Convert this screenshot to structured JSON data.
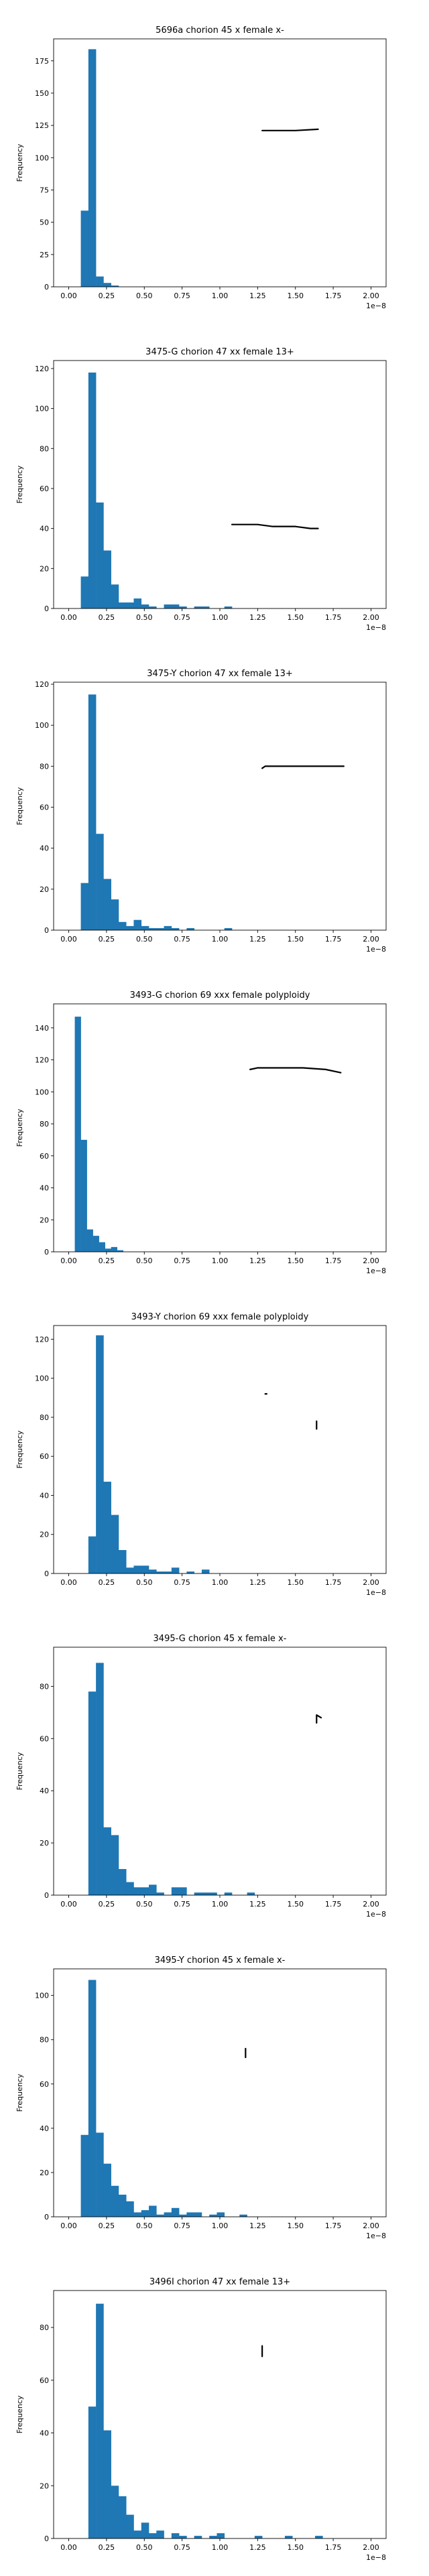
{
  "colors": {
    "bar": "#1f77b4",
    "axis": "#000000",
    "annotation": "#000000",
    "background": "#ffffff"
  },
  "chart_data": [
    {
      "type": "bar",
      "title": "5696a chorion 45 x female x-",
      "xlabel": "",
      "ylabel": "Frequency",
      "x_offset_label": "1e−8",
      "xlim": [
        -0.1,
        2.1
      ],
      "ylim": [
        0,
        192
      ],
      "xticks": [
        0.0,
        0.25,
        0.5,
        0.75,
        1.0,
        1.25,
        1.5,
        1.75,
        2.0
      ],
      "xtick_labels": [
        "0.00",
        "0.25",
        "0.50",
        "0.75",
        "1.00",
        "1.25",
        "1.50",
        "1.75",
        "2.00"
      ],
      "yticks": [
        0,
        25,
        50,
        75,
        100,
        125,
        150,
        175
      ],
      "bin_start": 0.08,
      "bin_width": 0.05,
      "values": [
        59,
        184,
        8,
        3,
        1
      ],
      "annotation_segments": [
        {
          "points": [
            [
              1.28,
              121
            ],
            [
              1.5,
              121
            ],
            [
              1.65,
              122
            ]
          ]
        }
      ],
      "grid": false,
      "legend": "none"
    },
    {
      "type": "bar",
      "title": "3475-G chorion 47 xx female 13+",
      "xlabel": "",
      "ylabel": "Frequency",
      "x_offset_label": "1e−8",
      "xlim": [
        -0.1,
        2.1
      ],
      "ylim": [
        0,
        124
      ],
      "xticks": [
        0.0,
        0.25,
        0.5,
        0.75,
        1.0,
        1.25,
        1.5,
        1.75,
        2.0
      ],
      "xtick_labels": [
        "0.00",
        "0.25",
        "0.50",
        "0.75",
        "1.00",
        "1.25",
        "1.50",
        "1.75",
        "2.00"
      ],
      "yticks": [
        0,
        20,
        40,
        60,
        80,
        100,
        120
      ],
      "bin_start": 0.08,
      "bin_width": 0.05,
      "values": [
        16,
        118,
        53,
        29,
        12,
        3,
        3,
        5,
        2,
        1,
        0,
        2,
        2,
        1,
        0,
        1,
        1,
        0,
        0,
        1
      ],
      "annotation_segments": [
        {
          "points": [
            [
              1.08,
              42
            ],
            [
              1.25,
              42
            ],
            [
              1.35,
              41
            ],
            [
              1.5,
              41
            ],
            [
              1.6,
              40
            ],
            [
              1.65,
              40
            ]
          ]
        }
      ],
      "grid": false,
      "legend": "none"
    },
    {
      "type": "bar",
      "title": "3475-Y chorion 47 xx female 13+",
      "xlabel": "",
      "ylabel": "Frequency",
      "x_offset_label": "1e−8",
      "xlim": [
        -0.1,
        2.1
      ],
      "ylim": [
        0,
        121
      ],
      "xticks": [
        0.0,
        0.25,
        0.5,
        0.75,
        1.0,
        1.25,
        1.5,
        1.75,
        2.0
      ],
      "xtick_labels": [
        "0.00",
        "0.25",
        "0.50",
        "0.75",
        "1.00",
        "1.25",
        "1.50",
        "1.75",
        "2.00"
      ],
      "yticks": [
        0,
        20,
        40,
        60,
        80,
        100,
        120
      ],
      "bin_start": 0.08,
      "bin_width": 0.05,
      "values": [
        23,
        115,
        47,
        25,
        15,
        4,
        2,
        5,
        2,
        1,
        1,
        2,
        1,
        0,
        1,
        0,
        0,
        0,
        0,
        1
      ],
      "annotation_segments": [
        {
          "points": [
            [
              1.28,
              79
            ],
            [
              1.3,
              80
            ],
            [
              1.5,
              80
            ],
            [
              1.82,
              80
            ]
          ]
        }
      ],
      "grid": false,
      "legend": "none"
    },
    {
      "type": "bar",
      "title": "3493-G chorion 69 xxx female polyploidy",
      "xlabel": "",
      "ylabel": "Frequency",
      "x_offset_label": "1e−8",
      "xlim": [
        -0.1,
        2.1
      ],
      "ylim": [
        0,
        155
      ],
      "xticks": [
        0.0,
        0.25,
        0.5,
        0.75,
        1.0,
        1.25,
        1.5,
        1.75,
        2.0
      ],
      "xtick_labels": [
        "0.00",
        "0.25",
        "0.50",
        "0.75",
        "1.00",
        "1.25",
        "1.50",
        "1.75",
        "2.00"
      ],
      "yticks": [
        0,
        20,
        40,
        60,
        80,
        100,
        120,
        140
      ],
      "bin_start": 0.04,
      "bin_width": 0.04,
      "values": [
        147,
        70,
        14,
        10,
        6,
        2,
        3,
        1
      ],
      "annotation_segments": [
        {
          "points": [
            [
              1.2,
              114
            ],
            [
              1.25,
              115
            ],
            [
              1.55,
              115
            ],
            [
              1.7,
              114
            ],
            [
              1.8,
              112
            ]
          ]
        }
      ],
      "grid": false,
      "legend": "none"
    },
    {
      "type": "bar",
      "title": "3493-Y chorion 69 xxx female polyploidy",
      "xlabel": "",
      "ylabel": "Frequency",
      "x_offset_label": "1e−8",
      "xlim": [
        -0.1,
        2.1
      ],
      "ylim": [
        0,
        127
      ],
      "xticks": [
        0.0,
        0.25,
        0.5,
        0.75,
        1.0,
        1.25,
        1.5,
        1.75,
        2.0
      ],
      "xtick_labels": [
        "0.00",
        "0.25",
        "0.50",
        "0.75",
        "1.00",
        "1.25",
        "1.50",
        "1.75",
        "2.00"
      ],
      "yticks": [
        0,
        20,
        40,
        60,
        80,
        100,
        120
      ],
      "bin_start": 0.13,
      "bin_width": 0.05,
      "values": [
        19,
        122,
        47,
        30,
        12,
        3,
        4,
        4,
        2,
        1,
        1,
        3,
        0,
        1,
        0,
        2
      ],
      "annotation_segments": [
        {
          "points": [
            [
              1.64,
              74
            ],
            [
              1.64,
              78
            ]
          ]
        },
        {
          "points": [
            [
              1.3,
              92
            ],
            [
              1.31,
              92
            ]
          ]
        }
      ],
      "grid": false,
      "legend": "none"
    },
    {
      "type": "bar",
      "title": "3495-G chorion 45 x female x-",
      "xlabel": "",
      "ylabel": "Frequency",
      "x_offset_label": "1e−8",
      "xlim": [
        -0.1,
        2.1
      ],
      "ylim": [
        0,
        95
      ],
      "xticks": [
        0.0,
        0.25,
        0.5,
        0.75,
        1.0,
        1.25,
        1.5,
        1.75,
        2.0
      ],
      "xtick_labels": [
        "0.00",
        "0.25",
        "0.50",
        "0.75",
        "1.00",
        "1.25",
        "1.50",
        "1.75",
        "2.00"
      ],
      "yticks": [
        0,
        20,
        40,
        60,
        80
      ],
      "bin_start": 0.13,
      "bin_width": 0.05,
      "values": [
        78,
        89,
        26,
        23,
        10,
        5,
        3,
        3,
        4,
        1,
        0,
        3,
        3,
        0,
        1,
        1,
        1,
        0,
        1,
        0,
        0,
        1
      ],
      "annotation_segments": [
        {
          "points": [
            [
              1.64,
              66
            ],
            [
              1.64,
              69
            ],
            [
              1.67,
              68
            ]
          ]
        }
      ],
      "grid": false,
      "legend": "none"
    },
    {
      "type": "bar",
      "title": "3495-Y chorion 45 x female x-",
      "xlabel": "",
      "ylabel": "Frequency",
      "x_offset_label": "1e−8",
      "xlim": [
        -0.1,
        2.1
      ],
      "ylim": [
        0,
        112
      ],
      "xticks": [
        0.0,
        0.25,
        0.5,
        0.75,
        1.0,
        1.25,
        1.5,
        1.75,
        2.0
      ],
      "xtick_labels": [
        "0.00",
        "0.25",
        "0.50",
        "0.75",
        "1.00",
        "1.25",
        "1.50",
        "1.75",
        "2.00"
      ],
      "yticks": [
        0,
        20,
        40,
        60,
        80,
        100
      ],
      "bin_start": 0.08,
      "bin_width": 0.05,
      "values": [
        37,
        107,
        38,
        24,
        14,
        10,
        7,
        2,
        3,
        5,
        1,
        2,
        4,
        1,
        2,
        2,
        0,
        1,
        2,
        0,
        0,
        1
      ],
      "annotation_segments": [
        {
          "points": [
            [
              1.17,
              72
            ],
            [
              1.17,
              76
            ]
          ]
        }
      ],
      "grid": false,
      "legend": "none"
    },
    {
      "type": "bar",
      "title": "3496I chorion 47 xx female 13+",
      "xlabel": "",
      "ylabel": "Frequency",
      "x_offset_label": "1e−8",
      "xlim": [
        -0.1,
        2.1
      ],
      "ylim": [
        0,
        94
      ],
      "xticks": [
        0.0,
        0.25,
        0.5,
        0.75,
        1.0,
        1.25,
        1.5,
        1.75,
        2.0
      ],
      "xtick_labels": [
        "0.00",
        "0.25",
        "0.50",
        "0.75",
        "1.00",
        "1.25",
        "1.50",
        "1.75",
        "2.00"
      ],
      "yticks": [
        0,
        20,
        40,
        60,
        80
      ],
      "bin_start": 0.13,
      "bin_width": 0.05,
      "values": [
        50,
        89,
        41,
        20,
        16,
        9,
        3,
        6,
        2,
        3,
        0,
        2,
        1,
        0,
        1,
        0,
        1,
        2,
        0,
        0,
        0,
        0,
        1,
        0,
        0,
        0,
        1,
        0,
        0,
        0,
        1
      ],
      "annotation_segments": [
        {
          "points": [
            [
              1.28,
              69
            ],
            [
              1.28,
              73
            ]
          ]
        }
      ],
      "grid": false,
      "legend": "none"
    }
  ]
}
